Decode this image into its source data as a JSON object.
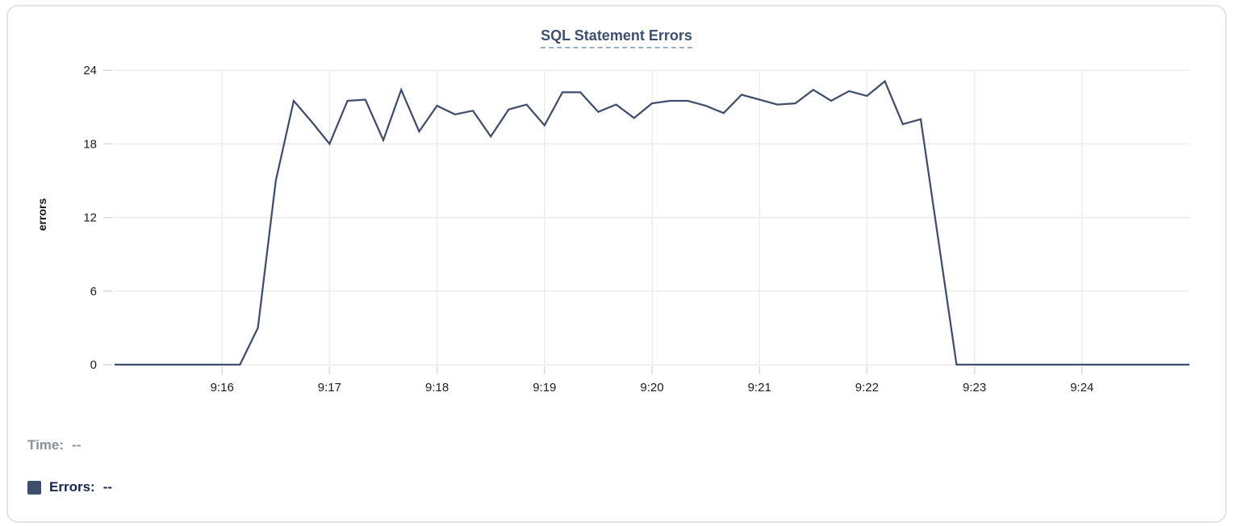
{
  "card": {
    "title": "SQL Statement Errors"
  },
  "readout": {
    "time_label": "Time:",
    "time_value": "--",
    "errors_label": "Errors:",
    "errors_value": "--"
  },
  "colors": {
    "line": "#3f4e6c",
    "grid": "#ececec",
    "tick_stub": "#dadada",
    "tick_label": "#1c1c1c",
    "title": "#3d5070",
    "title_underline": "#9fabc6",
    "legend_time": "#8b9099",
    "legend_errors": "#1b2450",
    "swatch": "#3e4d6b",
    "card_border": "#e4e4e4"
  },
  "chart_data": {
    "type": "line",
    "title": "SQL Statement Errors",
    "xlabel": "",
    "ylabel": "errors",
    "ylim": [
      0,
      24
    ],
    "yticks": [
      0,
      6,
      12,
      18,
      24
    ],
    "xticks": [
      "9:16",
      "9:17",
      "9:18",
      "9:19",
      "9:20",
      "9:21",
      "9:22",
      "9:23",
      "9:24"
    ],
    "x_range": [
      "9:15:00",
      "9:25:00"
    ],
    "grid": true,
    "legend_position": "bottom-left",
    "x": [
      "9:15:00",
      "9:15:10",
      "9:15:20",
      "9:15:30",
      "9:15:40",
      "9:15:50",
      "9:16:00",
      "9:16:10",
      "9:16:20",
      "9:16:30",
      "9:16:40",
      "9:16:50",
      "9:17:00",
      "9:17:10",
      "9:17:20",
      "9:17:30",
      "9:17:40",
      "9:17:50",
      "9:18:00",
      "9:18:10",
      "9:18:20",
      "9:18:30",
      "9:18:40",
      "9:18:50",
      "9:19:00",
      "9:19:10",
      "9:19:20",
      "9:19:30",
      "9:19:40",
      "9:19:50",
      "9:20:00",
      "9:20:10",
      "9:20:20",
      "9:20:30",
      "9:20:40",
      "9:20:50",
      "9:21:00",
      "9:21:10",
      "9:21:20",
      "9:21:30",
      "9:21:40",
      "9:21:50",
      "9:22:00",
      "9:22:10",
      "9:22:20",
      "9:22:30",
      "9:22:40",
      "9:22:50",
      "9:23:00",
      "9:23:10",
      "9:23:20",
      "9:23:30",
      "9:23:40",
      "9:23:50",
      "9:24:00",
      "9:24:10",
      "9:24:20",
      "9:24:30",
      "9:24:40",
      "9:24:50",
      "9:25:00"
    ],
    "series": [
      {
        "name": "Errors",
        "color": "#3f4e6c",
        "values": [
          0,
          0,
          0,
          0,
          0,
          0,
          0,
          0,
          3,
          15,
          21.5,
          19.8,
          18,
          21.5,
          21.6,
          18.3,
          22.4,
          19,
          21.1,
          20.4,
          20.7,
          18.6,
          20.8,
          21.2,
          19.5,
          22.2,
          22.2,
          20.6,
          21.2,
          20.1,
          21.3,
          21.5,
          21.5,
          21.1,
          20.5,
          22,
          21.6,
          21.2,
          21.3,
          22.4,
          21.5,
          22.3,
          21.9,
          23.1,
          19.6,
          20,
          10,
          0,
          0,
          0,
          0,
          0,
          0,
          0,
          0,
          0,
          0,
          0,
          0,
          0,
          0
        ]
      }
    ]
  }
}
